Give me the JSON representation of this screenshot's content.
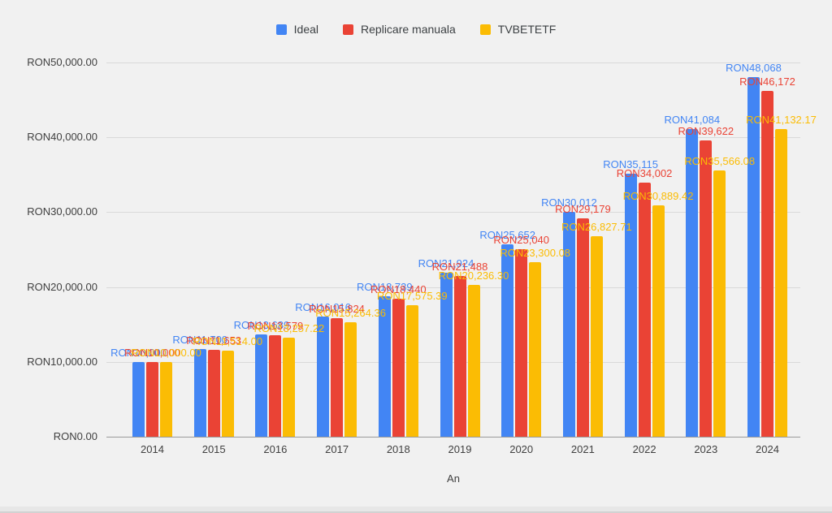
{
  "chart_data": {
    "type": "bar",
    "title": "",
    "xlabel": "An",
    "ylabel": "",
    "legend_position": "top",
    "grid": true,
    "ylim": [
      0,
      50000
    ],
    "y_axis": {
      "ticks": [
        {
          "value": 0,
          "label": "RON0.00"
        },
        {
          "value": 10000,
          "label": "RON10,000.00"
        },
        {
          "value": 20000,
          "label": "RON20,000.00"
        },
        {
          "value": 30000,
          "label": "RON30,000.00"
        },
        {
          "value": 40000,
          "label": "RON40,000.00"
        },
        {
          "value": 50000,
          "label": "RON50,000.00"
        }
      ]
    },
    "categories": [
      "2014",
      "2015",
      "2016",
      "2017",
      "2018",
      "2019",
      "2020",
      "2021",
      "2022",
      "2023",
      "2024"
    ],
    "series": [
      {
        "name": "Ideal",
        "color": "#4285F4",
        "values": [
          10000,
          11700,
          13689,
          16016,
          18739,
          21924,
          25652,
          30012,
          35115,
          41084,
          48068
        ],
        "labels": [
          "RON10,000",
          "RON11,700",
          "RON13,689",
          "RON16,016",
          "RON18,739",
          "RON21,924",
          "RON25,652",
          "RON30,012",
          "RON35,115",
          "RON41,084",
          "RON48,068"
        ]
      },
      {
        "name": "Replicare manuala",
        "color": "#EA4335",
        "values": [
          10000,
          11653,
          13579,
          15824,
          18440,
          21488,
          25040,
          29179,
          34002,
          39622,
          46172
        ],
        "labels": [
          "RON10,000",
          "RON11,653",
          "RON13,579",
          "RON15,824",
          "RON18,440",
          "RON21,488",
          "RON25,040",
          "RON29,179",
          "RON34,002",
          "RON39,622",
          "RON46,172"
        ]
      },
      {
        "name": "TVBETETF",
        "color": "#FBBC04",
        "values": [
          10000,
          11514,
          13257.22,
          15264.36,
          17575.39,
          20236.3,
          23300.08,
          26827.71,
          30889.42,
          35566.08,
          41132.17
        ],
        "labels": [
          "RON10,000.00",
          "RON11,514.00",
          "RON13,257.22",
          "RON15,264.36",
          "RON17,575.39",
          "RON20,236.30",
          "RON23,300.08",
          "RON26,827.71",
          "RON30,889.42",
          "RON35,566.08",
          "RON41,132.17"
        ]
      }
    ]
  }
}
